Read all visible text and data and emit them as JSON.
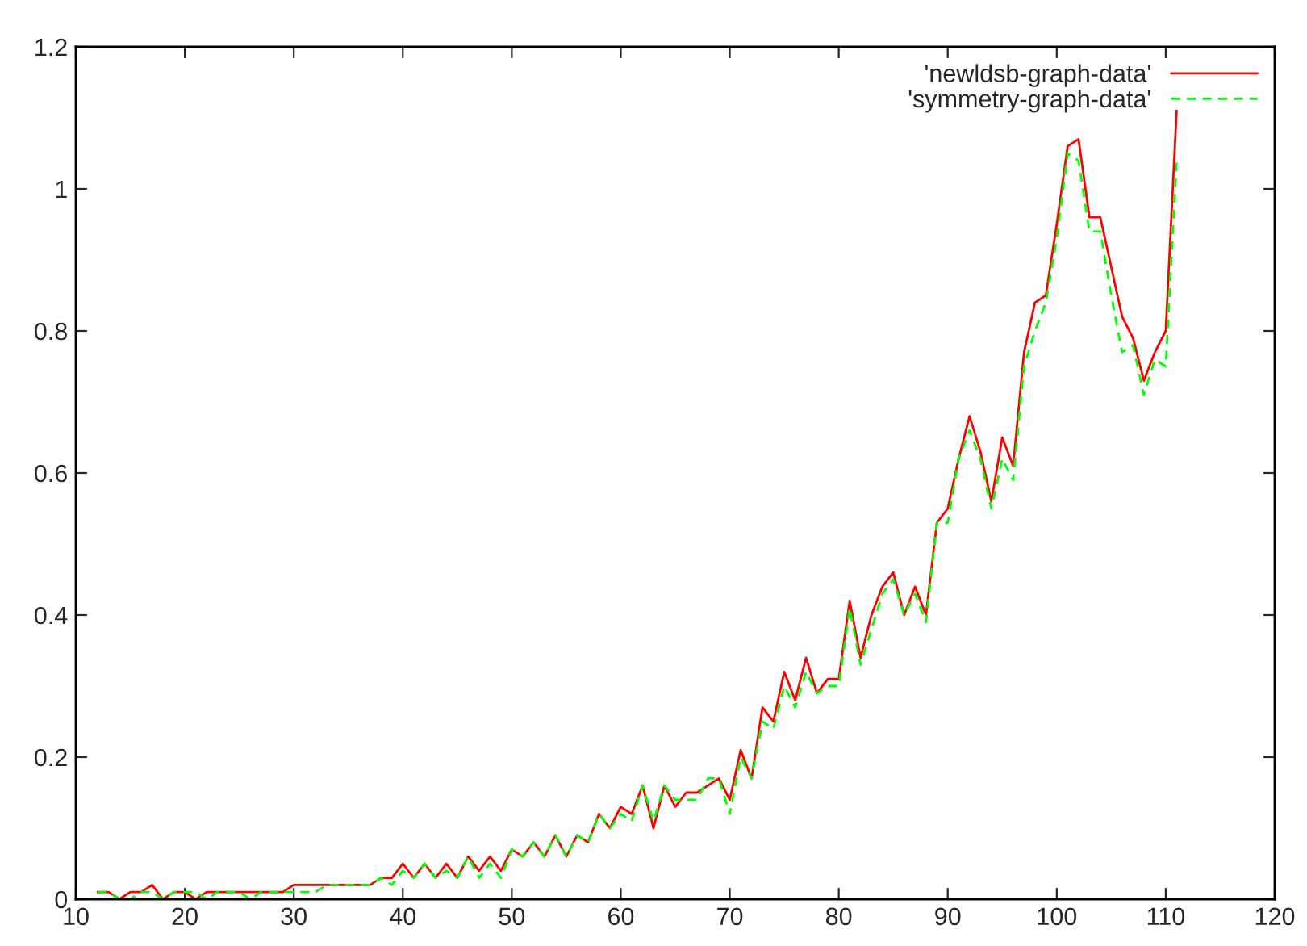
{
  "chart_data": {
    "type": "line",
    "x": [
      12,
      13,
      14,
      15,
      16,
      17,
      18,
      19,
      20,
      21,
      22,
      23,
      24,
      25,
      26,
      27,
      28,
      29,
      30,
      31,
      32,
      33,
      34,
      35,
      36,
      37,
      38,
      39,
      40,
      41,
      42,
      43,
      44,
      45,
      46,
      47,
      48,
      49,
      50,
      51,
      52,
      53,
      54,
      55,
      56,
      57,
      58,
      59,
      60,
      61,
      62,
      63,
      64,
      65,
      66,
      67,
      68,
      69,
      70,
      71,
      72,
      73,
      74,
      75,
      76,
      77,
      78,
      79,
      80,
      81,
      82,
      83,
      84,
      85,
      86,
      87,
      88,
      89,
      90,
      91,
      92,
      93,
      94,
      95,
      96,
      97,
      98,
      99,
      100,
      101,
      102,
      103,
      104,
      105,
      106,
      107,
      108,
      109,
      110,
      111
    ],
    "series": [
      {
        "name": "'newldsb-graph-data'",
        "color": "#ff0000",
        "line_style": "solid",
        "values": [
          0.01,
          0.01,
          0,
          0.01,
          0.01,
          0.02,
          0,
          0.01,
          0.01,
          0,
          0.01,
          0.01,
          0.01,
          0.01,
          0.01,
          0.01,
          0.01,
          0.01,
          0.02,
          0.02,
          0.02,
          0.02,
          0.02,
          0.02,
          0.02,
          0.02,
          0.03,
          0.03,
          0.05,
          0.03,
          0.05,
          0.03,
          0.05,
          0.03,
          0.06,
          0.04,
          0.06,
          0.04,
          0.07,
          0.06,
          0.08,
          0.06,
          0.09,
          0.06,
          0.09,
          0.08,
          0.12,
          0.1,
          0.13,
          0.12,
          0.16,
          0.1,
          0.16,
          0.13,
          0.15,
          0.15,
          0.16,
          0.17,
          0.14,
          0.21,
          0.17,
          0.27,
          0.25,
          0.32,
          0.28,
          0.34,
          0.29,
          0.31,
          0.31,
          0.42,
          0.34,
          0.4,
          0.44,
          0.46,
          0.4,
          0.44,
          0.4,
          0.53,
          0.55,
          0.62,
          0.68,
          0.63,
          0.56,
          0.65,
          0.61,
          0.77,
          0.84,
          0.85,
          0.95,
          1.06,
          1.07,
          0.96,
          0.96,
          0.89,
          0.82,
          0.79,
          0.73,
          0.77,
          0.8,
          1.11
        ]
      },
      {
        "name": "'symmetry-graph-data'",
        "color": "#00ff00",
        "line_style": "dashed",
        "values": [
          0.01,
          0.01,
          0,
          0,
          0.01,
          0.01,
          0,
          0.01,
          0.01,
          0.01,
          0,
          0.01,
          0.01,
          0.01,
          0,
          0.01,
          0.01,
          0.01,
          0.01,
          0.01,
          0.01,
          0.02,
          0.02,
          0.02,
          0.02,
          0.02,
          0.03,
          0.02,
          0.04,
          0.03,
          0.05,
          0.03,
          0.04,
          0.03,
          0.06,
          0.03,
          0.05,
          0.03,
          0.07,
          0.06,
          0.08,
          0.06,
          0.09,
          0.06,
          0.09,
          0.08,
          0.12,
          0.1,
          0.12,
          0.11,
          0.16,
          0.11,
          0.16,
          0.14,
          0.14,
          0.14,
          0.17,
          0.17,
          0.12,
          0.2,
          0.17,
          0.25,
          0.24,
          0.3,
          0.27,
          0.32,
          0.29,
          0.3,
          0.3,
          0.41,
          0.33,
          0.38,
          0.43,
          0.45,
          0.4,
          0.43,
          0.39,
          0.53,
          0.53,
          0.62,
          0.66,
          0.62,
          0.55,
          0.62,
          0.59,
          0.75,
          0.8,
          0.84,
          0.93,
          1.05,
          1.04,
          0.94,
          0.94,
          0.85,
          0.77,
          0.78,
          0.71,
          0.76,
          0.75,
          1.04
        ]
      }
    ],
    "xlim": [
      10,
      120
    ],
    "xticks": [
      10,
      20,
      30,
      40,
      50,
      60,
      70,
      80,
      90,
      100,
      110,
      120
    ],
    "ylim": [
      0,
      1.2
    ],
    "yticks": [
      0,
      0.2,
      0.4,
      0.6,
      0.8,
      1,
      1.2
    ],
    "grid": false,
    "legend": "top right"
  }
}
